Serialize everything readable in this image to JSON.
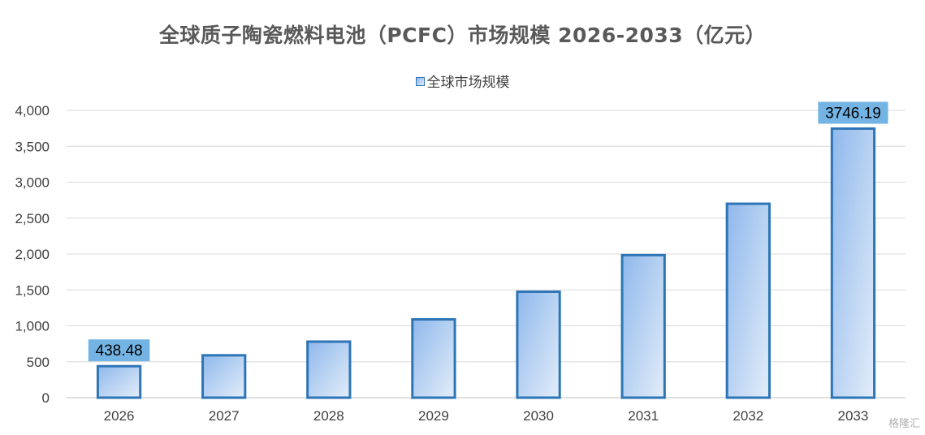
{
  "chart_data": {
    "type": "bar",
    "title": "全球质子陶瓷燃料电池（PCFC）市场规模 2026-2033（亿元）",
    "categories": [
      "2026",
      "2027",
      "2028",
      "2029",
      "2030",
      "2031",
      "2032",
      "2033"
    ],
    "series": [
      {
        "name": "全球市场规模",
        "values": [
          438.48,
          590,
          780,
          1090,
          1475,
          1985,
          2700,
          3746.19
        ]
      }
    ],
    "data_labels": {
      "2026": "438.48",
      "2033": "3746.19"
    },
    "ylim": [
      0,
      4000
    ],
    "yticks": [
      "0",
      "500",
      "1,000",
      "1,500",
      "2,000",
      "2,500",
      "3,000",
      "3,500",
      "4,000"
    ],
    "ytick_values": [
      0,
      500,
      1000,
      1500,
      2000,
      2500,
      3000,
      3500,
      4000
    ],
    "grid": true,
    "legend_position": "top",
    "colors": {
      "bar_fill_start": "#8fb8ec",
      "bar_fill_end": "#dde9f7",
      "bar_border": "#2e75b6",
      "label_bg": "#74b4e4",
      "grid": "#d9d9d9"
    }
  },
  "watermark": "格隆汇"
}
